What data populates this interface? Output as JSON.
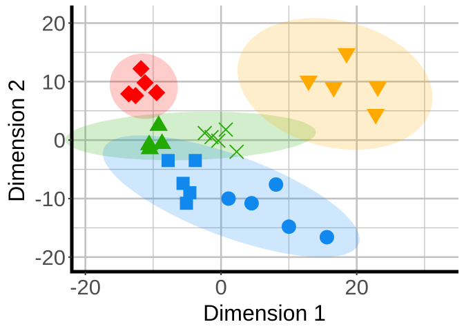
{
  "chart_data": {
    "type": "scatter",
    "title": "",
    "xlabel": "Dimension 1",
    "ylabel": "Dimension 2",
    "xlim": [
      -22,
      35
    ],
    "ylim": [
      -22.5,
      23
    ],
    "x_ticks": [
      -20,
      0,
      20
    ],
    "x_tick_labels": [
      "-20",
      "0",
      "20"
    ],
    "y_ticks": [
      -20,
      -10,
      0,
      10,
      20
    ],
    "y_tick_labels": [
      "-20",
      "-10",
      "0",
      "10",
      "20"
    ],
    "grid": true,
    "legend": "none",
    "series": [
      {
        "shape": "diamond",
        "color": "#ff0000",
        "points": [
          [
            -11.8,
            12.2
          ],
          [
            -11.2,
            9.8
          ],
          [
            -9.5,
            8.1
          ],
          [
            -13.6,
            7.9
          ],
          [
            -12.6,
            7.6
          ]
        ],
        "ellipse": {
          "cx": -11.4,
          "cy": 9.2,
          "rx": 5.0,
          "ry": 5.6,
          "angle_deg": 10
        }
      },
      {
        "shape": "triangle-up",
        "color": "#22aa00",
        "points": [
          [
            -9.2,
            2.6
          ],
          [
            -10.6,
            -0.7
          ],
          [
            -8.7,
            -0.5
          ],
          [
            -10.5,
            -1.4
          ]
        ],
        "ellipse": {
          "cx": -4.5,
          "cy": 0.7,
          "rx": 18.5,
          "ry": 4.1,
          "angle_deg": 2
        }
      },
      {
        "shape": "x",
        "color": "#22aa00",
        "points": [
          [
            -2.4,
            1.2
          ],
          [
            0.7,
            1.8
          ],
          [
            -1.4,
            0.5
          ],
          [
            2.3,
            -2.0
          ],
          [
            -0.4,
            -0.1
          ]
        ],
        "ellipse": null
      },
      {
        "shape": "square",
        "color": "#1188ee",
        "points": [
          [
            -7.8,
            -3.5
          ],
          [
            -3.8,
            -3.5
          ],
          [
            -5.6,
            -7.4
          ],
          [
            -4.6,
            -9.0
          ],
          [
            -5.1,
            -10.8
          ]
        ],
        "ellipse": {
          "cx": 1.5,
          "cy": -9.6,
          "rx": 20.5,
          "ry": 6.8,
          "angle_deg": -24
        }
      },
      {
        "shape": "circle",
        "color": "#1188ee",
        "points": [
          [
            8.1,
            -7.6
          ],
          [
            1.1,
            -10.0
          ],
          [
            4.5,
            -10.8
          ],
          [
            10.0,
            -14.8
          ],
          [
            15.6,
            -16.6
          ]
        ],
        "ellipse": null
      },
      {
        "shape": "triangle-down",
        "color": "#ffaa00",
        "points": [
          [
            18.5,
            14.7
          ],
          [
            12.9,
            10.0
          ],
          [
            16.6,
            8.9
          ],
          [
            23.1,
            9.0
          ],
          [
            22.8,
            4.3
          ]
        ],
        "ellipse": {
          "cx": 16.8,
          "cy": 9.6,
          "rx": 14.8,
          "ry": 10.7,
          "angle_deg": -20
        }
      }
    ],
    "ellipse_opacity": 0.2
  }
}
